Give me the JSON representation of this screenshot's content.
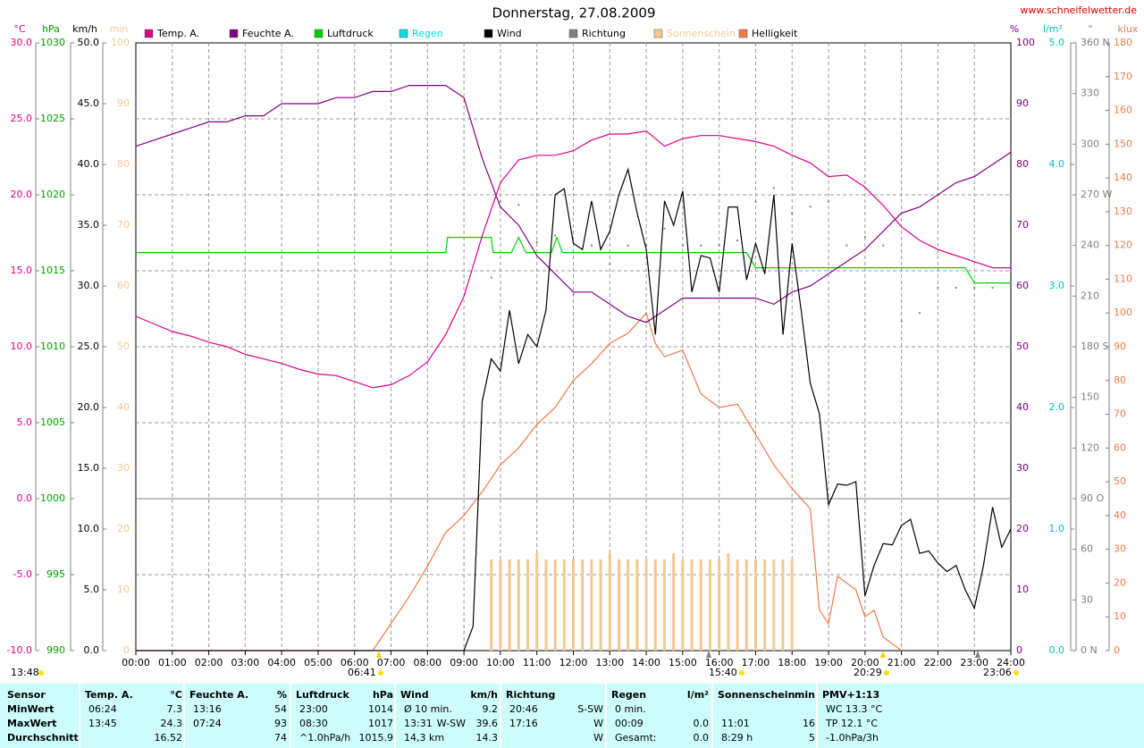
{
  "chart_data": {
    "type": "line",
    "title": "Donnerstag, 27.08.2009",
    "source": "www.schneifelwetter.de",
    "grid": true,
    "xlim": [
      0,
      24
    ],
    "xticks": [
      {
        "value": 0,
        "label": "00:00"
      },
      {
        "value": 1,
        "label": "01:00"
      },
      {
        "value": 2,
        "label": "02:00"
      },
      {
        "value": 3,
        "label": "03:00"
      },
      {
        "value": 4,
        "label": "04:00"
      },
      {
        "value": 5,
        "label": "05:00"
      },
      {
        "value": 6,
        "label": "06:00"
      },
      {
        "value": 7,
        "label": "07:00"
      },
      {
        "value": 8,
        "label": "08:00"
      },
      {
        "value": 9,
        "label": "09:00"
      },
      {
        "value": 10,
        "label": "10:00"
      },
      {
        "value": 11,
        "label": "11:00"
      },
      {
        "value": 12,
        "label": "12:00"
      },
      {
        "value": 13,
        "label": "13:00"
      },
      {
        "value": 14,
        "label": "14:00"
      },
      {
        "value": 15,
        "label": "15:00"
      },
      {
        "value": 16,
        "label": "16:00"
      },
      {
        "value": 17,
        "label": "17:00"
      },
      {
        "value": 18,
        "label": "18:00"
      },
      {
        "value": 19,
        "label": "19:00"
      },
      {
        "value": 20,
        "label": "20:00"
      },
      {
        "value": 21,
        "label": "21:00"
      },
      {
        "value": 22,
        "label": "22:00"
      },
      {
        "value": 23,
        "label": "23:00"
      },
      {
        "value": 24,
        "label": "24:00"
      }
    ],
    "axes": [
      {
        "unit": "°C",
        "color": "#e0008a",
        "ylim": [
          -10,
          30
        ],
        "yticks": [
          {
            "value": -10,
            "label": "-10.0"
          },
          {
            "value": -5,
            "label": "-5.0"
          },
          {
            "value": 0,
            "label": "0.0"
          },
          {
            "value": 5,
            "label": "5.0"
          },
          {
            "value": 10,
            "label": "10.0"
          },
          {
            "value": 15,
            "label": "15.0"
          },
          {
            "value": 20,
            "label": "20.0"
          },
          {
            "value": 25,
            "label": "25.0"
          },
          {
            "value": 30,
            "label": "30.0"
          }
        ]
      },
      {
        "unit": "hPa",
        "color": "#00a000",
        "ylim": [
          990,
          1030
        ],
        "yticks": [
          990,
          995,
          1000,
          1005,
          1010,
          1015,
          1020,
          1025,
          1030
        ]
      },
      {
        "unit": "km/h",
        "color": "#000000",
        "ylim": [
          0,
          50
        ],
        "yticks": [
          {
            "value": 0,
            "label": "0.0"
          },
          {
            "value": 5,
            "label": "5.0"
          },
          {
            "value": 10,
            "label": "10.0"
          },
          {
            "value": 15,
            "label": "15.0"
          },
          {
            "value": 20,
            "label": "20.0"
          },
          {
            "value": 25,
            "label": "25.0"
          },
          {
            "value": 30,
            "label": "30.0"
          },
          {
            "value": 35,
            "label": "35.0"
          },
          {
            "value": 40,
            "label": "40.0"
          },
          {
            "value": 45,
            "label": "45.0"
          },
          {
            "value": 50,
            "label": "50.0"
          }
        ]
      },
      {
        "unit": "min",
        "color": "#f5c890",
        "ylim": [
          0,
          100
        ],
        "yticks": [
          0,
          10,
          20,
          30,
          40,
          50,
          60,
          70,
          80,
          90,
          100
        ]
      },
      {
        "unit": "%",
        "color": "#800080",
        "ylim": [
          0,
          100
        ],
        "yticks": [
          0,
          10,
          20,
          30,
          40,
          50,
          60,
          70,
          80,
          90,
          100
        ]
      },
      {
        "unit": "l/m²",
        "color": "#00c0c0",
        "ylim": [
          0,
          5
        ],
        "yticks": [
          {
            "value": 0,
            "label": "0.0"
          },
          {
            "value": 1,
            "label": "1.0"
          },
          {
            "value": 2,
            "label": "2.0"
          },
          {
            "value": 3,
            "label": "3.0"
          },
          {
            "value": 4,
            "label": "4.0"
          },
          {
            "value": 5,
            "label": "5.0"
          }
        ]
      },
      {
        "unit": "°",
        "color": "#808080",
        "ylim": [
          0,
          360
        ],
        "yticks": [
          {
            "value": 0,
            "label": "0 N"
          },
          30,
          60,
          {
            "value": 90,
            "label": "90 O"
          },
          120,
          150,
          {
            "value": 180,
            "label": "180 S"
          },
          210,
          240,
          {
            "value": 270,
            "label": "270 W"
          },
          300,
          330,
          {
            "value": 360,
            "label": "360 N"
          }
        ]
      },
      {
        "unit": "klux",
        "color": "#f07848",
        "ylim": [
          0,
          180
        ],
        "yticks": [
          0,
          10,
          20,
          30,
          40,
          50,
          60,
          70,
          80,
          90,
          100,
          110,
          120,
          130,
          140,
          150,
          160,
          170,
          180
        ]
      }
    ],
    "series": [
      {
        "name": "Temp. A.",
        "color": "#e0008a",
        "kind": "line",
        "axis": 0,
        "x": [
          0,
          0.5,
          1,
          1.5,
          2,
          2.5,
          3,
          3.5,
          4,
          4.5,
          5,
          5.5,
          6,
          6.5,
          7,
          7.5,
          8,
          8.5,
          9,
          9.5,
          10,
          10.5,
          11,
          11.5,
          12,
          12.5,
          13,
          13.5,
          14,
          14.5,
          15,
          15.5,
          16,
          16.5,
          17,
          17.5,
          18,
          18.5,
          19,
          19.5,
          20,
          20.5,
          21,
          21.5,
          22,
          22.5,
          23,
          23.5,
          24
        ],
        "values": [
          12.0,
          11.5,
          11.0,
          10.7,
          10.3,
          10.0,
          9.5,
          9.2,
          8.9,
          8.5,
          8.2,
          8.1,
          7.7,
          7.3,
          7.5,
          8.1,
          9.0,
          10.8,
          13.3,
          17.3,
          20.8,
          22.3,
          22.6,
          22.6,
          22.9,
          23.6,
          24.0,
          24.0,
          24.2,
          23.2,
          23.7,
          23.9,
          23.9,
          23.7,
          23.5,
          23.2,
          22.6,
          22.1,
          21.2,
          21.3,
          20.5,
          19.3,
          17.9,
          17.0,
          16.4,
          16.0,
          15.6,
          15.2,
          15.2
        ]
      },
      {
        "name": "Feuchte A.",
        "color": "#800080",
        "kind": "line",
        "axis": 4,
        "x": [
          0,
          0.5,
          1,
          1.5,
          2,
          2.5,
          3,
          3.5,
          4,
          4.5,
          5,
          5.5,
          6,
          6.5,
          7,
          7.5,
          8,
          8.5,
          9,
          9.5,
          10,
          10.5,
          11,
          11.5,
          12,
          12.5,
          13,
          13.5,
          14,
          14.5,
          15,
          15.5,
          16,
          16.5,
          17,
          17.5,
          18,
          18.5,
          19,
          19.5,
          20,
          20.5,
          21,
          21.5,
          22,
          22.5,
          23,
          23.5,
          24
        ],
        "values": [
          83,
          84,
          85,
          86,
          87,
          87,
          88,
          88,
          90,
          90,
          90,
          91,
          91,
          92,
          92,
          93,
          93,
          93,
          91,
          81,
          73,
          70,
          65,
          62,
          59,
          59,
          57,
          55,
          54,
          56,
          58,
          58,
          58,
          58,
          58,
          57,
          59,
          60,
          62,
          64,
          66,
          69,
          72,
          73,
          75,
          77,
          78,
          80,
          82
        ]
      },
      {
        "name": "Luftdruck",
        "color": "#00d000",
        "kind": "line",
        "axis": 1,
        "x": [
          0,
          8.5,
          8.55,
          9.75,
          9.8,
          10.3,
          10.5,
          10.7,
          11.4,
          11.55,
          11.7,
          16.75,
          17,
          22.75,
          23,
          24
        ],
        "values": [
          1016.2,
          1016.2,
          1017.2,
          1017.2,
          1016.2,
          1016.2,
          1017.2,
          1016.2,
          1016.2,
          1017.2,
          1016.2,
          1016.2,
          1015.2,
          1015.2,
          1014.2,
          1014.2
        ]
      },
      {
        "name": "Regen",
        "color": "#00e0e0",
        "kind": "bars",
        "axis": 5,
        "x": [],
        "values": []
      },
      {
        "name": "Wind",
        "color": "#000000",
        "kind": "line",
        "axis": 2,
        "x": [
          0,
          9,
          9.25,
          9.5,
          9.75,
          10,
          10.25,
          10.5,
          10.75,
          11,
          11.25,
          11.5,
          11.75,
          12,
          12.25,
          12.5,
          12.75,
          13,
          13.25,
          13.5,
          13.75,
          14,
          14.25,
          14.5,
          14.75,
          15,
          15.25,
          15.5,
          15.75,
          16,
          16.25,
          16.5,
          16.75,
          17,
          17.25,
          17.5,
          17.75,
          18,
          18.25,
          18.5,
          18.75,
          19,
          19.25,
          19.5,
          19.75,
          20,
          20.25,
          20.5,
          20.75,
          21,
          21.25,
          21.5,
          21.75,
          22,
          22.25,
          22.5,
          22.75,
          23,
          23.25,
          23.5,
          23.75,
          24
        ],
        "values": [
          0,
          0,
          2,
          20.5,
          24,
          23,
          28,
          23.6,
          26,
          25,
          28,
          37.5,
          38,
          33.5,
          33,
          37,
          33,
          34.5,
          37.5,
          39.6,
          36,
          33,
          26,
          37,
          35,
          37.8,
          29.5,
          32.5,
          32.3,
          29.5,
          36.5,
          36.5,
          30.5,
          33.5,
          31,
          37.5,
          26,
          33.5,
          28,
          22,
          19.5,
          12,
          13.7,
          13.6,
          13.9,
          4.5,
          7,
          8.8,
          8.7,
          10.3,
          10.8,
          8,
          8.2,
          7.2,
          6.5,
          7,
          5,
          3.5,
          7,
          11.8,
          8.5,
          10
        ]
      },
      {
        "name": "Richtung",
        "color": "#808080",
        "kind": "dots",
        "axis": 6,
        "x": [
          9.75,
          10,
          10.5,
          11,
          11.5,
          12,
          12.5,
          13,
          13.5,
          14,
          14.5,
          15,
          15.5,
          16,
          16.5,
          17,
          17.5,
          18,
          18.5,
          19,
          19.5,
          20,
          20.5,
          21,
          21.5,
          22,
          22.5,
          23,
          23.5
        ],
        "values": [
          221,
          266,
          264,
          242,
          246,
          211,
          240,
          229,
          240,
          240,
          250,
          240,
          240,
          240,
          243,
          266,
          274,
          259,
          263,
          266,
          240,
          245,
          240,
          195,
          200,
          215,
          215,
          215,
          215
        ]
      },
      {
        "name": "Sonnenschein",
        "color": "#f5c890",
        "kind": "bars",
        "axis": 3,
        "x": [
          9.75,
          10,
          10.25,
          10.5,
          10.75,
          11,
          11.25,
          11.5,
          11.75,
          12,
          12.25,
          12.5,
          12.75,
          13,
          13.25,
          13.5,
          13.75,
          14,
          14.25,
          14.5,
          14.75,
          15,
          15.25,
          15.5,
          15.75,
          16,
          16.25,
          16.5,
          16.75,
          17,
          17.25,
          17.5,
          17.75,
          18
        ],
        "values": [
          15,
          15,
          15,
          15,
          15,
          16,
          15,
          15,
          15,
          15,
          15,
          15,
          15,
          16,
          15,
          15,
          15,
          15,
          15,
          15,
          16,
          15,
          15,
          15,
          15,
          15,
          16,
          15,
          15,
          15,
          15,
          15,
          15,
          15
        ]
      },
      {
        "name": "Helligkeit",
        "color": "#f07848",
        "kind": "line",
        "axis": 7,
        "x": [
          0,
          6.5,
          7,
          7.5,
          8,
          8.5,
          9,
          9.5,
          10,
          10.5,
          11,
          11.5,
          12,
          12.5,
          13,
          13.5,
          14,
          14.25,
          14.5,
          15,
          15.5,
          16,
          16.5,
          17,
          17.5,
          18,
          18.5,
          18.75,
          19,
          19.25,
          19.75,
          20,
          20.25,
          20.5,
          21
        ],
        "values": [
          0,
          0,
          8,
          16,
          25,
          35,
          40,
          47,
          55,
          60,
          67,
          72,
          80,
          85,
          91,
          94,
          100,
          91,
          87,
          89,
          76,
          72,
          73,
          64,
          55,
          48,
          42,
          12,
          8,
          22,
          18,
          10,
          12,
          4,
          0
        ]
      }
    ],
    "annotations": [
      "13:48",
      "06:41",
      "15:40",
      "20:29",
      "23:06"
    ]
  },
  "table": {
    "columns": [
      {
        "title": "Sensor",
        "rows": [
          {
            "l": "MinWert"
          },
          {
            "l": "MaxWert"
          },
          {
            "l": "Durchschnitt"
          }
        ]
      },
      {
        "title": "Temp. A.",
        "unit": "°C",
        "rows": [
          {
            "l": "06:24",
            "r": "7.3"
          },
          {
            "l": "13:45",
            "r": "24.3"
          },
          {
            "r": "16.52"
          }
        ]
      },
      {
        "title": "Feuchte A.",
        "unit": "%",
        "rows": [
          {
            "l": "13:16",
            "r": "54"
          },
          {
            "l": "07:24",
            "r": "93"
          },
          {
            "r": "74"
          }
        ]
      },
      {
        "title": "Luftdruck",
        "unit": "hPa",
        "rows": [
          {
            "l": "23:00",
            "r": "1014"
          },
          {
            "l": "08:30",
            "r": "1017"
          },
          {
            "l": "^1.0hPa/h",
            "r": "1015.9"
          }
        ]
      },
      {
        "title": "Wind",
        "unit": "km/h",
        "rows": [
          {
            "l": "Ø 10 min.",
            "r": "9.2"
          },
          {
            "l": "13:31",
            "m": "W-SW",
            "r": "39.6"
          },
          {
            "l": "14,3 km",
            "r": "14.3"
          }
        ]
      },
      {
        "title": "Richtung",
        "rows": [
          {
            "l": "20:46",
            "r": "S-SW"
          },
          {
            "l": "17:16",
            "r": "W"
          },
          {
            "r": "W"
          }
        ]
      },
      {
        "title": "Regen",
        "unit": "l/m²",
        "rows": [
          {
            "l": "0 min."
          },
          {
            "l": "00:09",
            "r": "0.0"
          },
          {
            "l": "Gesamt:",
            "r": "0.0"
          }
        ]
      },
      {
        "title": "Sonnenschein",
        "unit": "min",
        "rows": [
          null,
          {
            "l": "11:01",
            "r": "16"
          },
          {
            "l": "8:29 h",
            "r": "5"
          }
        ]
      },
      {
        "title": "PMV+1:13",
        "rows": [
          {
            "l": "WC 13.3 °C"
          },
          {
            "l": "TP 12.1 °C"
          },
          {
            "l": "-1.0hPa/3h"
          }
        ]
      }
    ]
  }
}
